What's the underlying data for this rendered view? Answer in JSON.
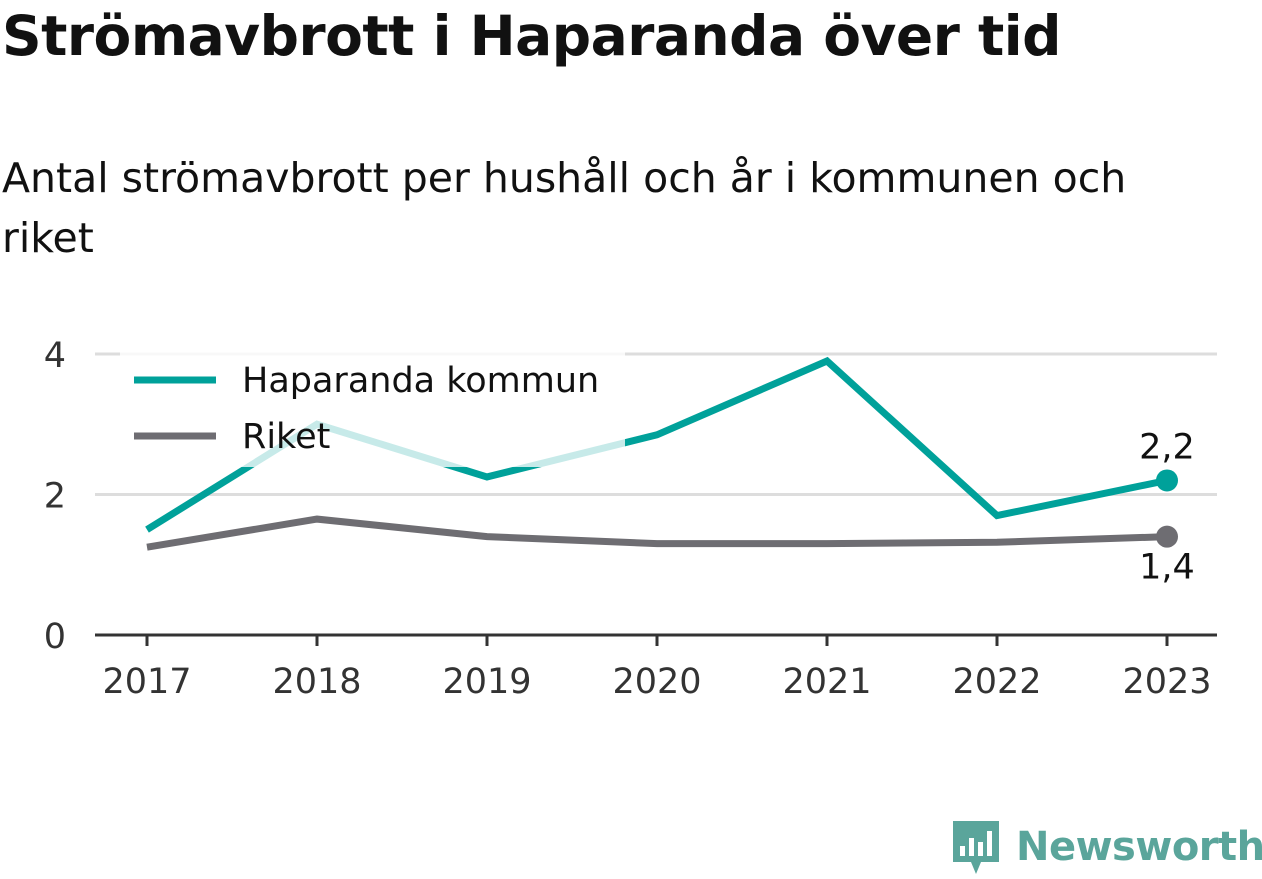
{
  "title": "Strömavbrott i Haparanda över tid",
  "subtitle": "Antal strömavbrott per hushåll och år i kommunen och riket",
  "logo_text": "Newsworthy",
  "colors": {
    "haparanda": "#00a19a",
    "riket": "#6e6d72",
    "grid": "#dddddd",
    "axis": "#333333"
  },
  "chart_data": {
    "type": "line",
    "title": "Strömavbrott i Haparanda över tid",
    "subtitle": "Antal strömavbrott per hushåll och år i kommunen och riket",
    "xlabel": "",
    "ylabel": "",
    "categories": [
      "2017",
      "2018",
      "2019",
      "2020",
      "2021",
      "2022",
      "2023"
    ],
    "ylim": [
      0,
      4
    ],
    "yticks": [
      0,
      2,
      4
    ],
    "ytick_labels": [
      "0",
      "2",
      "4"
    ],
    "grid": true,
    "legend": "top-left",
    "series": [
      {
        "name": "Haparanda kommun",
        "values": [
          1.5,
          3.0,
          2.25,
          2.85,
          3.9,
          1.7,
          2.2
        ],
        "end_label": "2,2"
      },
      {
        "name": "Riket",
        "values": [
          1.25,
          1.65,
          1.4,
          1.3,
          1.3,
          1.32,
          1.4
        ],
        "end_label": "1,4"
      }
    ]
  }
}
